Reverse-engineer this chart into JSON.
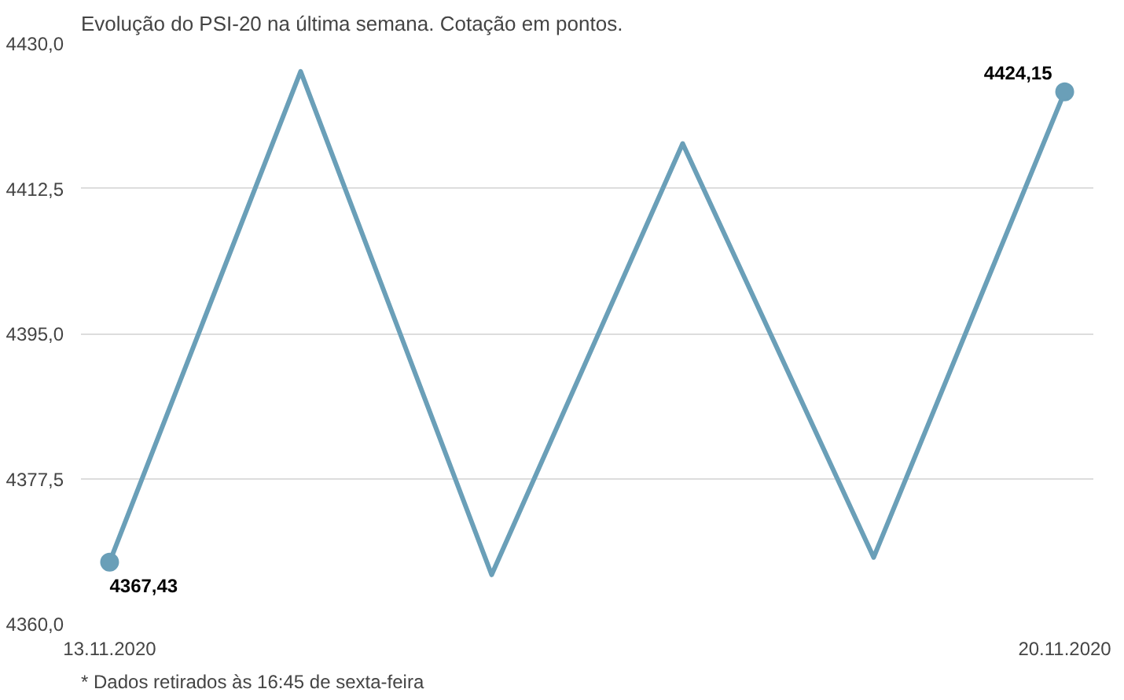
{
  "chart_data": {
    "type": "line",
    "title": "Evolução do PSI-20 na última semana. Cotação em pontos.",
    "categories": [
      "13.11.2020",
      null,
      null,
      null,
      null,
      "20.11.2020"
    ],
    "series": [
      {
        "color": "#6a9fb8",
        "values": [
          4367.43,
          4426.6,
          4365.9,
          4417.9,
          4368.0,
          4424.15
        ],
        "value_labels": [
          "4367,43",
          null,
          null,
          null,
          null,
          "4424,15"
        ]
      }
    ],
    "ylim": [
      4360.0,
      4430.0
    ],
    "yticks": [
      {
        "value": 4360.0,
        "label": "4360,0"
      },
      {
        "value": 4377.5,
        "label": "4377,5"
      },
      {
        "value": 4395.0,
        "label": "4395,0"
      },
      {
        "value": 4412.5,
        "label": "4412,5"
      },
      {
        "value": 4430.0,
        "label": "4430,0"
      }
    ],
    "grid": "y",
    "line_style": "solid",
    "annotations": [
      "* Dados retirados às 16:45 de sexta-feira"
    ]
  }
}
